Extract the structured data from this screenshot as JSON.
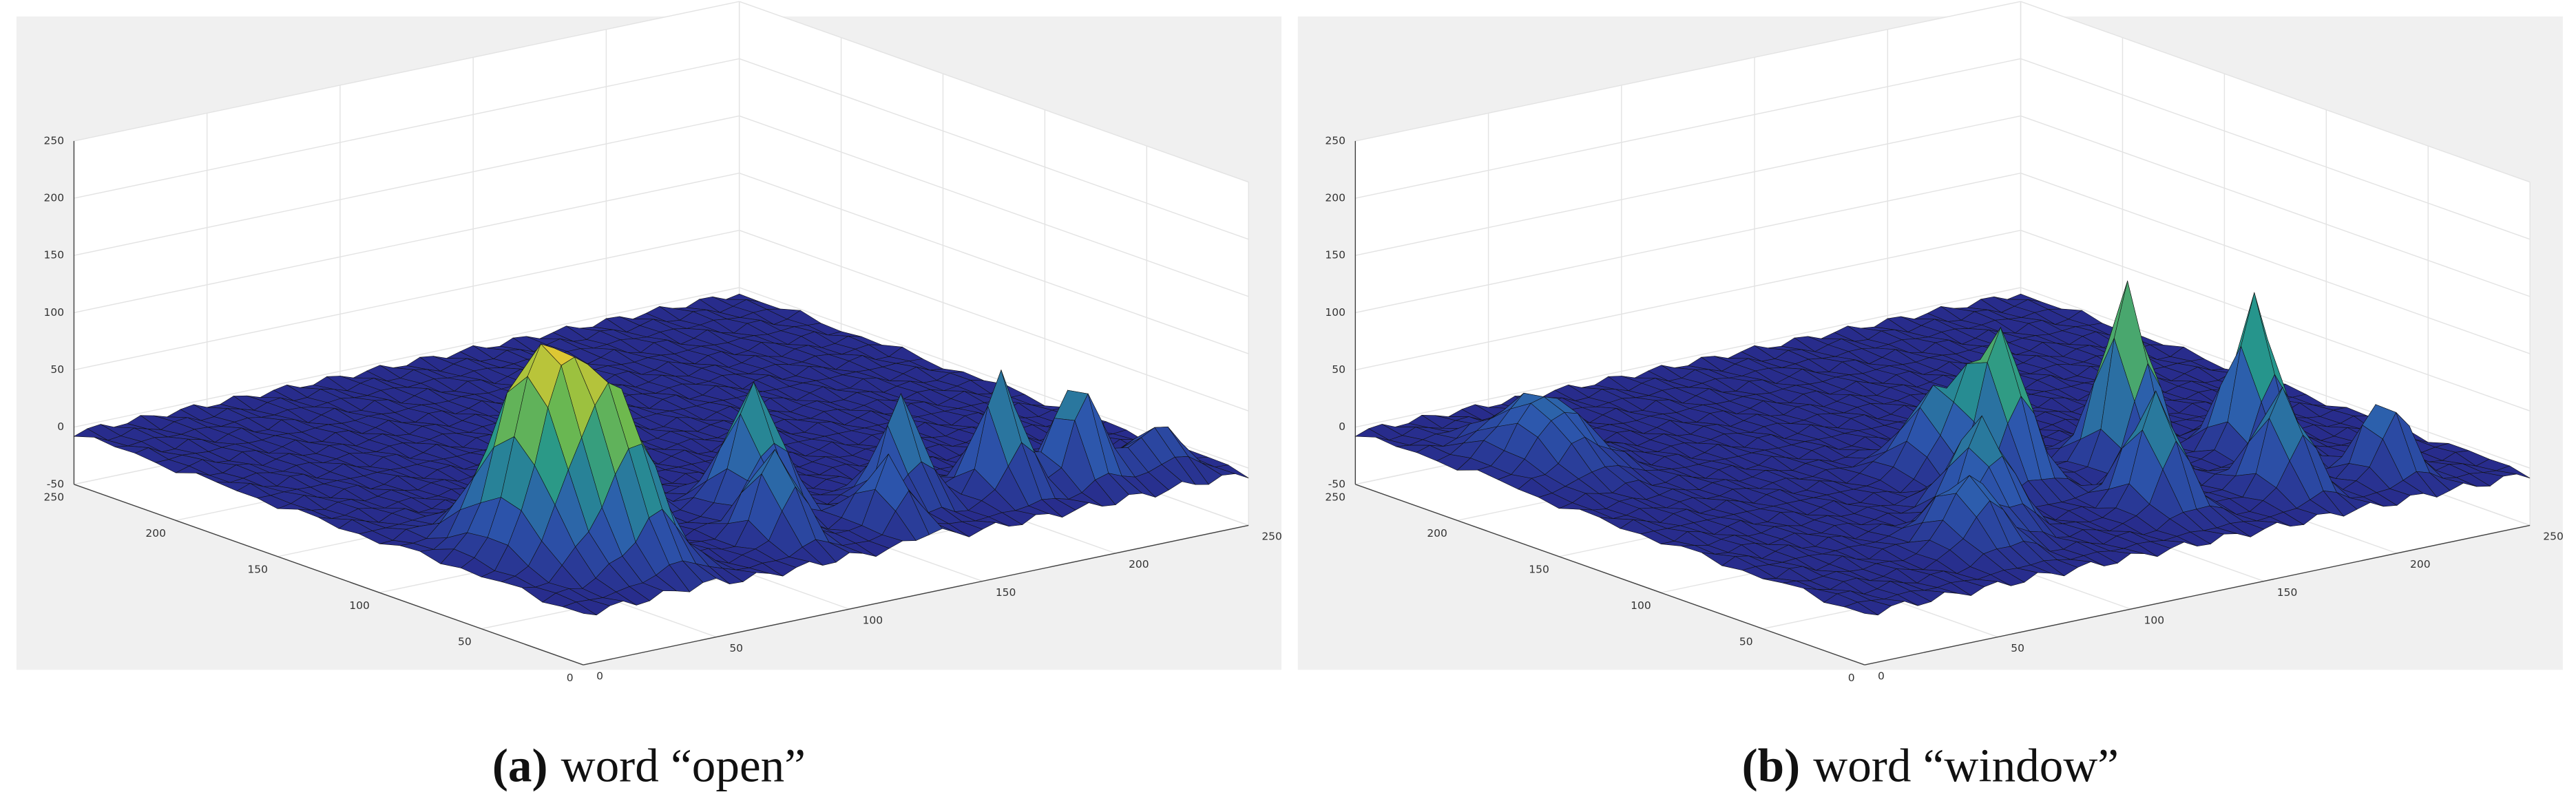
{
  "chart_data": [
    {
      "type": "surface",
      "caption": {
        "label": "(a)",
        "text": "word “open”"
      },
      "xlim": [
        0,
        250
      ],
      "xticks": [
        0,
        50,
        100,
        150,
        200,
        250
      ],
      "ylim": [
        0,
        250
      ],
      "yticks": [
        0,
        50,
        100,
        150,
        200,
        250
      ],
      "zlim": [
        -50,
        250
      ],
      "zticks": [
        -50,
        0,
        50,
        100,
        150,
        200,
        250
      ],
      "grid": true
    },
    {
      "type": "surface",
      "caption": {
        "label": "(b)",
        "text": "word “window”"
      },
      "xlim": [
        0,
        250
      ],
      "xticks": [
        0,
        50,
        100,
        150,
        200,
        250
      ],
      "ylim": [
        0,
        250
      ],
      "yticks": [
        0,
        50,
        100,
        150,
        200,
        250
      ],
      "zlim": [
        -50,
        250
      ],
      "zticks": [
        -50,
        0,
        50,
        100,
        150,
        200,
        250
      ],
      "grid": true
    }
  ]
}
